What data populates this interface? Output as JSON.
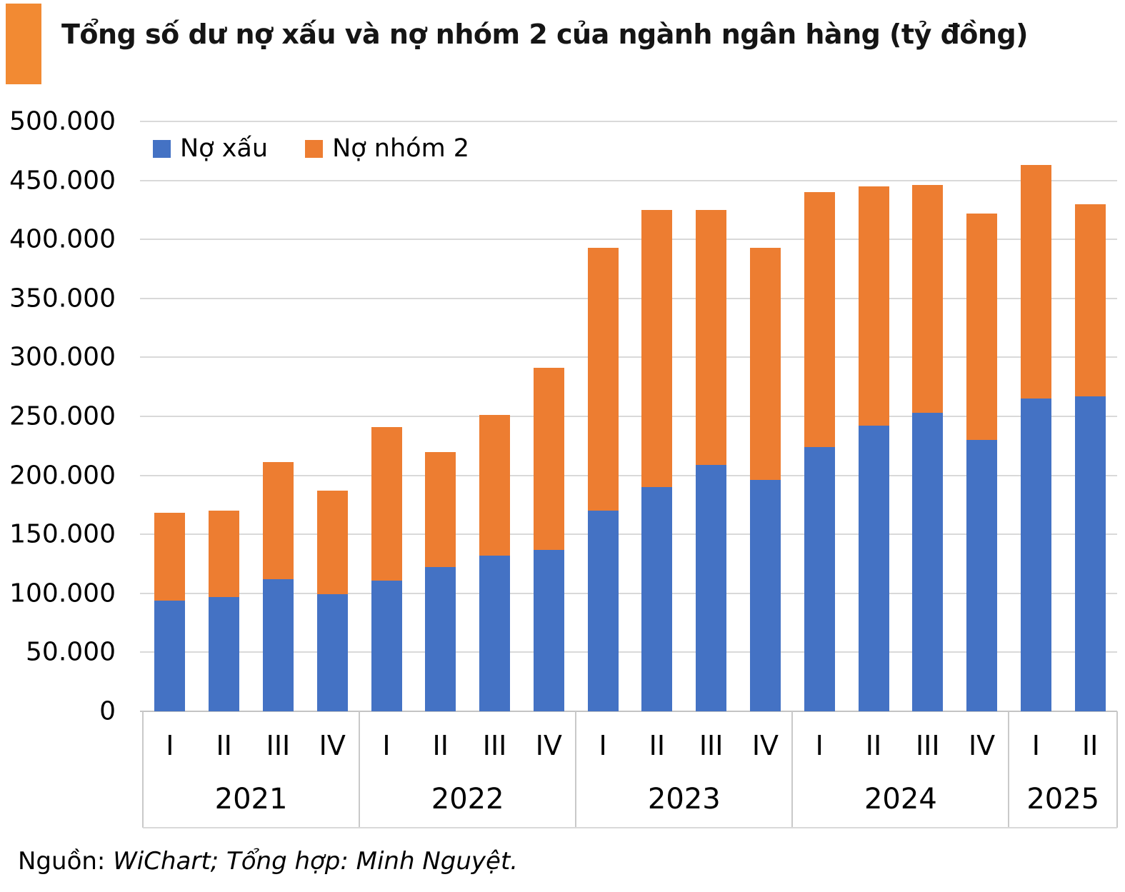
{
  "title": {
    "text": "Tổng số dư nợ xấu và nợ nhóm 2 của ngành ngân hàng (tỷ đồng)"
  },
  "source": {
    "prefix": "Nguồn: ",
    "text": "WiChart; Tổng hợp: Minh Nguyệt."
  },
  "colors": {
    "no_xau": "#4472C4",
    "no_nhom_2": "#ED7D31",
    "title_accent": "#F28A33",
    "gridline": "#D9D9D9",
    "axis_line": "#C4C4C4",
    "divider": "#C9C9C9"
  },
  "chart_data": {
    "type": "bar",
    "stacked": true,
    "title": "Tổng số dư nợ xấu và nợ nhóm 2 của ngành ngân hàng (tỷ đồng)",
    "unit": "tỷ đồng",
    "grid": true,
    "legend_position": "top-left-inside",
    "ylim": [
      0,
      500000
    ],
    "ytick_step": 50000,
    "yticks": [
      {
        "value": 0,
        "label": "0"
      },
      {
        "value": 50000,
        "label": "50.000"
      },
      {
        "value": 100000,
        "label": "100.000"
      },
      {
        "value": 150000,
        "label": "150.000"
      },
      {
        "value": 200000,
        "label": "200.000"
      },
      {
        "value": 250000,
        "label": "250.000"
      },
      {
        "value": 300000,
        "label": "300.000"
      },
      {
        "value": 350000,
        "label": "350.000"
      },
      {
        "value": 400000,
        "label": "400.000"
      },
      {
        "value": 450000,
        "label": "450.000"
      },
      {
        "value": 500000,
        "label": "500.000"
      }
    ],
    "groups": [
      {
        "year": "2021",
        "quarters": [
          "I",
          "II",
          "III",
          "IV"
        ]
      },
      {
        "year": "2022",
        "quarters": [
          "I",
          "II",
          "III",
          "IV"
        ]
      },
      {
        "year": "2023",
        "quarters": [
          "I",
          "II",
          "III",
          "IV"
        ]
      },
      {
        "year": "2024",
        "quarters": [
          "I",
          "II",
          "III",
          "IV"
        ]
      },
      {
        "year": "2025",
        "quarters": [
          "I",
          "II"
        ]
      }
    ],
    "series": [
      {
        "name": "Nợ xấu",
        "color": "#4472C4",
        "values": [
          94000,
          97000,
          112000,
          99000,
          111000,
          122000,
          132000,
          137000,
          170000,
          190000,
          209000,
          196000,
          224000,
          242000,
          253000,
          230000,
          265000,
          267000
        ]
      },
      {
        "name": "Nợ nhóm 2",
        "color": "#ED7D31",
        "values": [
          74000,
          73000,
          99000,
          88000,
          130000,
          98000,
          119000,
          154000,
          223000,
          235000,
          216000,
          197000,
          216000,
          203000,
          193000,
          192000,
          198000,
          163000
        ]
      }
    ],
    "totals": [
      168000,
      170000,
      211000,
      187000,
      241000,
      220000,
      251000,
      291000,
      393000,
      425000,
      425000,
      393000,
      440000,
      445000,
      446000,
      422000,
      463000,
      430000
    ]
  }
}
